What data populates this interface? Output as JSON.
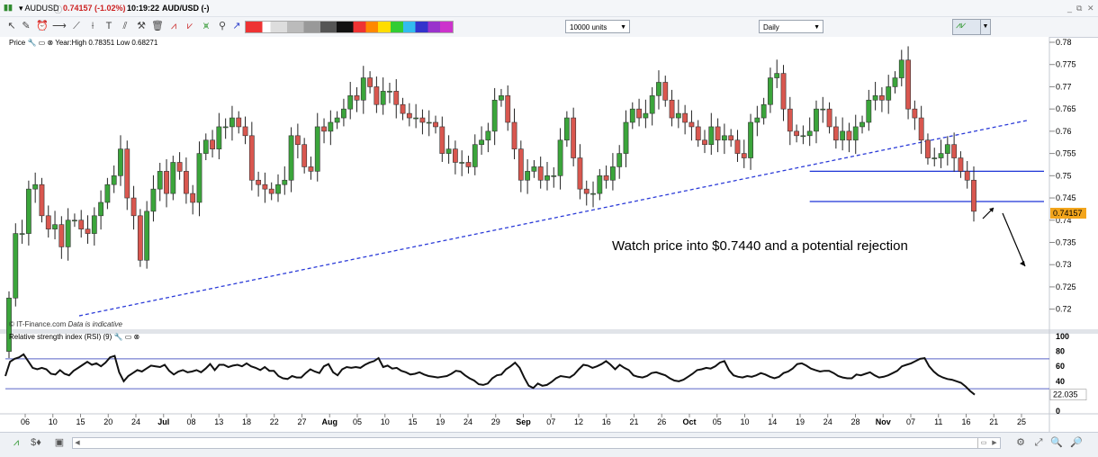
{
  "titlebar": {
    "symbol": "AUDUSD",
    "quote": "0.74157 (-1.02%)",
    "time": "10:19:22",
    "instrument": "AUD/USD (-)"
  },
  "toolbar": {
    "units": "10000 units",
    "period": "Daily"
  },
  "price_panel": {
    "label": "Price",
    "stats": "Year:High 0.78351 Low 0.68271",
    "watermark": "© IT-Finance.com",
    "watermark_note": "Data is indicative",
    "annotation": "Watch price into $0.7440 and a potential rejection",
    "last_price": "0.74157"
  },
  "rsi_panel": {
    "label": "Relative strength index (RSI) (9)",
    "last_value": "22.035"
  },
  "colors": {
    "up": "#3ba53b",
    "down": "#d9574f",
    "rsi": "#111111",
    "support": "#1c33d6",
    "trend": "#2b3bd8"
  },
  "chart_data": [
    {
      "type": "candlestick",
      "ylim": [
        0.7175,
        0.78
      ],
      "yticks": [
        0.72,
        0.725,
        0.73,
        0.735,
        0.74,
        0.745,
        0.75,
        0.755,
        0.76,
        0.765,
        0.77,
        0.775,
        0.78
      ],
      "ytick_labels": [
        "0.72",
        "0.725",
        "0.73",
        "0.735",
        "0.74",
        "0.745",
        "0.75",
        "0.755",
        "0.76",
        "0.765",
        "0.77",
        "0.775",
        "0.78"
      ],
      "support_levels": [
        0.751,
        0.7442
      ],
      "trendline": {
        "from": [
          "Jun 14",
          0.7185
        ],
        "to": [
          "Nov 21",
          0.7625
        ]
      },
      "close_sequence": [
        0.7225,
        0.737,
        0.737,
        0.747,
        0.748,
        0.741,
        0.738,
        0.739,
        0.734,
        0.74,
        0.74,
        0.738,
        0.737,
        0.741,
        0.744,
        0.748,
        0.75,
        0.756,
        0.745,
        0.741,
        0.731,
        0.742,
        0.747,
        0.751,
        0.746,
        0.753,
        0.751,
        0.746,
        0.744,
        0.755,
        0.758,
        0.756,
        0.761,
        0.761,
        0.763,
        0.761,
        0.759,
        0.749,
        0.748,
        0.747,
        0.746,
        0.748,
        0.749,
        0.759,
        0.757,
        0.752,
        0.751,
        0.761,
        0.76,
        0.762,
        0.763,
        0.765,
        0.768,
        0.767,
        0.772,
        0.77,
        0.766,
        0.769,
        0.769,
        0.766,
        0.764,
        0.763,
        0.763,
        0.762,
        0.762,
        0.761,
        0.755,
        0.756,
        0.753,
        0.753,
        0.752,
        0.757,
        0.758,
        0.76,
        0.767,
        0.768,
        0.762,
        0.756,
        0.749,
        0.751,
        0.752,
        0.749,
        0.75,
        0.75,
        0.758,
        0.763,
        0.754,
        0.747,
        0.746,
        0.746,
        0.75,
        0.749,
        0.752,
        0.755,
        0.762,
        0.765,
        0.763,
        0.764,
        0.768,
        0.771,
        0.767,
        0.763,
        0.764,
        0.762,
        0.761,
        0.758,
        0.757,
        0.761,
        0.758,
        0.759,
        0.758,
        0.755,
        0.754,
        0.762,
        0.763,
        0.766,
        0.772,
        0.773,
        0.765,
        0.76,
        0.759,
        0.759,
        0.76,
        0.765,
        0.765,
        0.761,
        0.758,
        0.76,
        0.758,
        0.761,
        0.762,
        0.767,
        0.768,
        0.767,
        0.77,
        0.772,
        0.776,
        0.765,
        0.763,
        0.758,
        0.754,
        0.754,
        0.755,
        0.757,
        0.754,
        0.751,
        0.749,
        0.742
      ]
    },
    {
      "type": "line",
      "name": "RSI (9)",
      "ylim": [
        0,
        100
      ],
      "yticks": [
        0,
        20,
        40,
        60,
        80,
        100
      ],
      "ytick_labels": [
        "0",
        "20",
        "40",
        "60",
        "80",
        "100"
      ],
      "bands": [
        70,
        30
      ],
      "values": [
        47,
        66,
        70,
        72,
        76,
        67,
        58,
        56,
        58,
        56,
        50,
        49,
        55,
        50,
        48,
        54,
        58,
        62,
        66,
        62,
        64,
        60,
        65,
        72,
        74,
        52,
        40,
        47,
        51,
        55,
        53,
        57,
        61,
        60,
        59,
        62,
        54,
        49,
        53,
        55,
        52,
        53,
        55,
        52,
        57,
        63,
        55,
        62,
        62,
        59,
        61,
        62,
        60,
        64,
        60,
        58,
        55,
        59,
        54,
        54,
        47,
        44,
        43,
        47,
        45,
        45,
        51,
        56,
        53,
        51,
        60,
        63,
        52,
        48,
        56,
        59,
        58,
        59,
        58,
        62,
        65,
        67,
        71,
        59,
        61,
        57,
        58,
        54,
        52,
        49,
        50,
        52,
        49,
        47,
        46,
        45,
        46,
        47,
        50,
        54,
        53,
        48,
        44,
        41,
        36,
        35,
        37,
        44,
        48,
        49,
        56,
        60,
        65,
        58,
        45,
        34,
        31,
        37,
        34,
        35,
        39,
        44,
        47,
        46,
        45,
        49,
        56,
        62,
        61,
        58,
        60,
        63,
        67,
        62,
        56,
        62,
        58,
        55,
        48,
        46,
        45,
        47,
        51,
        52,
        50,
        48,
        44,
        41,
        40,
        42,
        46,
        50,
        55,
        56,
        58,
        57,
        60,
        65,
        67,
        55,
        48,
        46,
        45,
        47,
        46,
        48,
        51,
        49,
        46,
        44,
        46,
        51,
        53,
        57,
        63,
        64,
        61,
        57,
        55,
        53,
        54,
        54,
        51,
        47,
        45,
        44,
        44,
        49,
        48,
        50,
        52,
        48,
        45,
        46,
        48,
        51,
        54,
        60,
        62,
        64,
        67,
        70,
        71,
        60,
        53,
        48,
        45,
        43,
        42,
        40,
        38,
        33,
        27,
        22
      ]
    },
    {
      "type": "date-axis",
      "tick_labels": [
        "06",
        "10",
        "15",
        "20",
        "24",
        "Jul",
        "08",
        "13",
        "18",
        "22",
        "27",
        "Aug",
        "05",
        "10",
        "15",
        "19",
        "24",
        "29",
        "Sep",
        "07",
        "12",
        "16",
        "21",
        "26",
        "Oct",
        "05",
        "10",
        "14",
        "19",
        "24",
        "28",
        "Nov",
        "07",
        "11",
        "16",
        "21",
        "25"
      ],
      "bold_labels": [
        "Jul",
        "Aug",
        "Sep",
        "Oct",
        "Nov"
      ]
    }
  ]
}
